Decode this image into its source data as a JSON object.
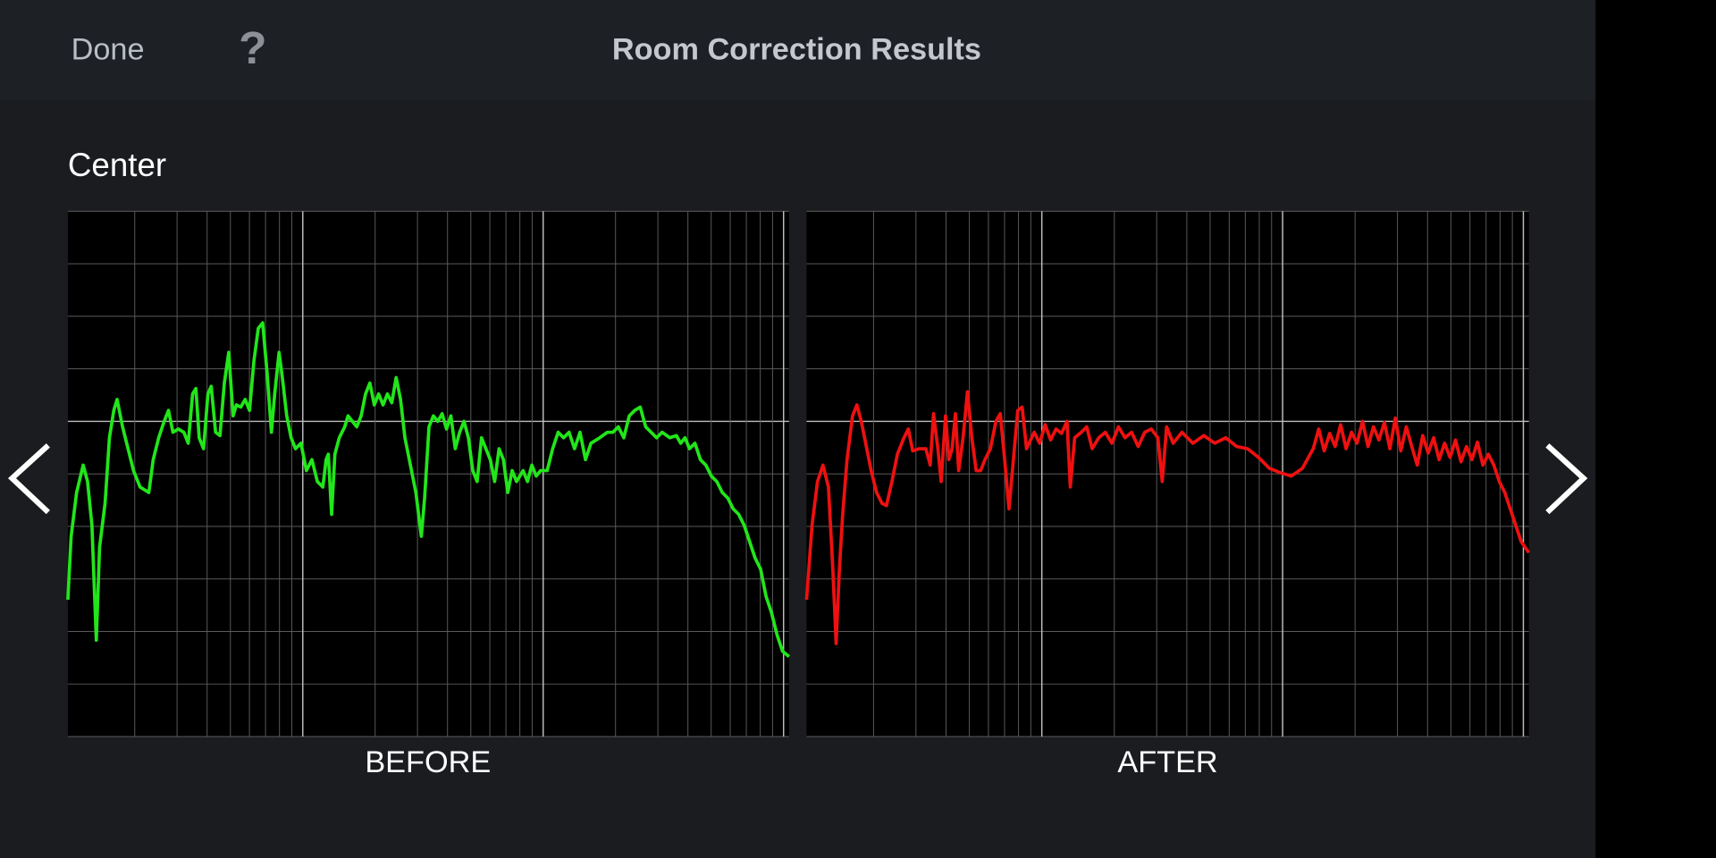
{
  "header": {
    "done": "Done",
    "help": "?",
    "title": "Room Correction Results"
  },
  "section": {
    "label": "Center"
  },
  "panels": [
    {
      "label": "BEFORE"
    },
    {
      "label": "AFTER"
    }
  ]
}
